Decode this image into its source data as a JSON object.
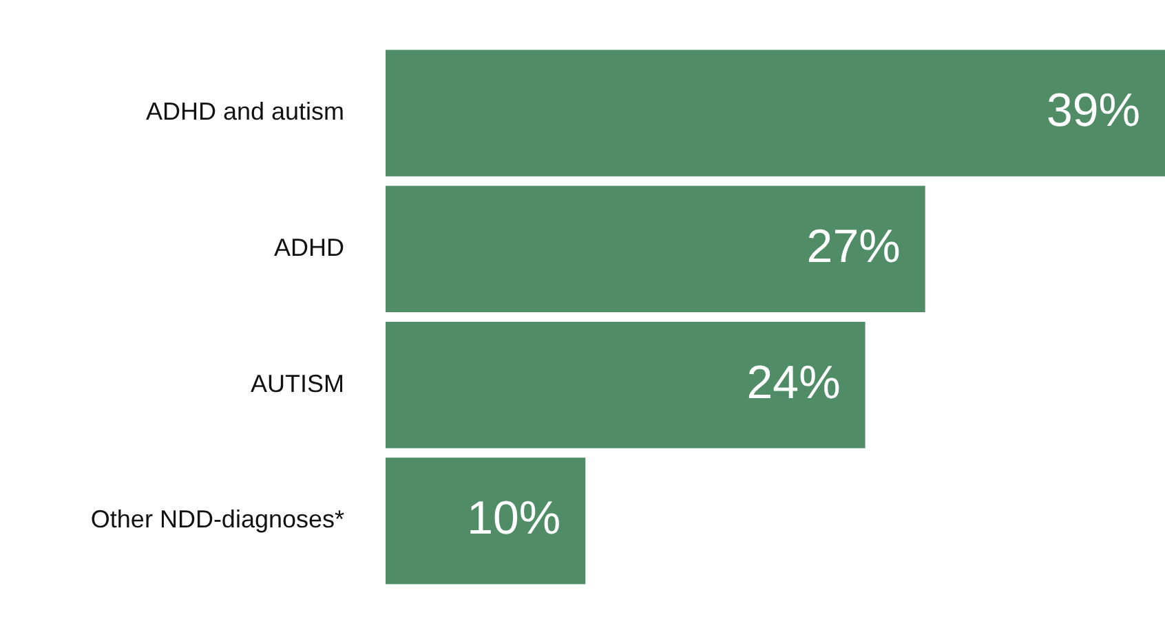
{
  "chart_data": {
    "type": "bar",
    "orientation": "horizontal",
    "categories": [
      "ADHD and autism",
      "ADHD",
      "AUTISM",
      "Other NDD-diagnoses*"
    ],
    "values": [
      39,
      27,
      24,
      10
    ],
    "color": "#508c66",
    "value_labels": [
      "39%",
      "27%",
      "24%",
      "10%"
    ]
  }
}
